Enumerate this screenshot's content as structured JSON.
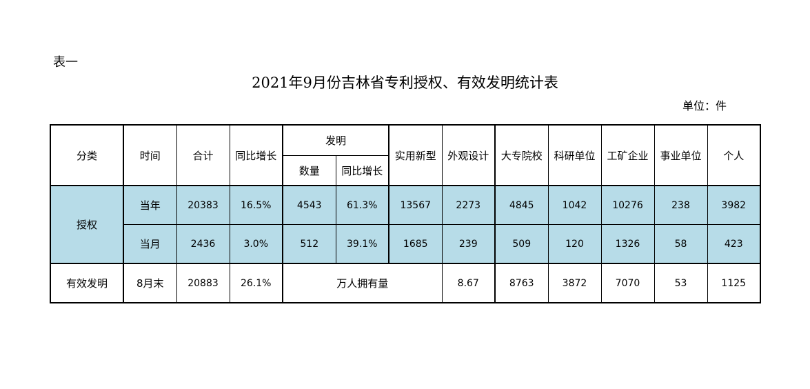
{
  "document": {
    "table_id": "表一",
    "title": "2021年9月份吉林省专利授权、有效发明统计表",
    "unit": "单位：件"
  },
  "headers": {
    "category": "分类",
    "time": "时间",
    "total": "合计",
    "yoy": "同比增长",
    "invention": "发明",
    "invention_count": "数量",
    "invention_yoy": "同比增长",
    "utility_model": "实用新型",
    "design": "外观设计",
    "universities": "大专院校",
    "research_units": "科研单位",
    "industrial_enterprises": "工矿企业",
    "public_institutions": "事业单位",
    "individuals": "个人"
  },
  "authorization": {
    "label": "授权",
    "rows": [
      {
        "period": "当年",
        "total": "20383",
        "yoy": "16.5%",
        "invention_count": "4543",
        "invention_yoy": "61.3%",
        "utility_model": "13567",
        "design": "2273",
        "universities": "4845",
        "research_units": "1042",
        "industrial_enterprises": "10276",
        "public_institutions": "238",
        "individuals": "3982"
      },
      {
        "period": "当月",
        "total": "2436",
        "yoy": "3.0%",
        "invention_count": "512",
        "invention_yoy": "39.1%",
        "utility_model": "1685",
        "design": "239",
        "universities": "509",
        "research_units": "120",
        "industrial_enterprises": "1326",
        "public_institutions": "58",
        "individuals": "423"
      }
    ]
  },
  "valid_invention": {
    "label": "有效发明",
    "period": "8月末",
    "total": "20883",
    "yoy": "26.1%",
    "per_10k_label": "万人拥有量",
    "per_10k_value": "8.67",
    "universities": "8763",
    "research_units": "3872",
    "industrial_enterprises": "7070",
    "public_institutions": "53",
    "individuals": "1125"
  },
  "colors": {
    "authorization_row_fill": "#b7dce8",
    "border": "#000000"
  }
}
